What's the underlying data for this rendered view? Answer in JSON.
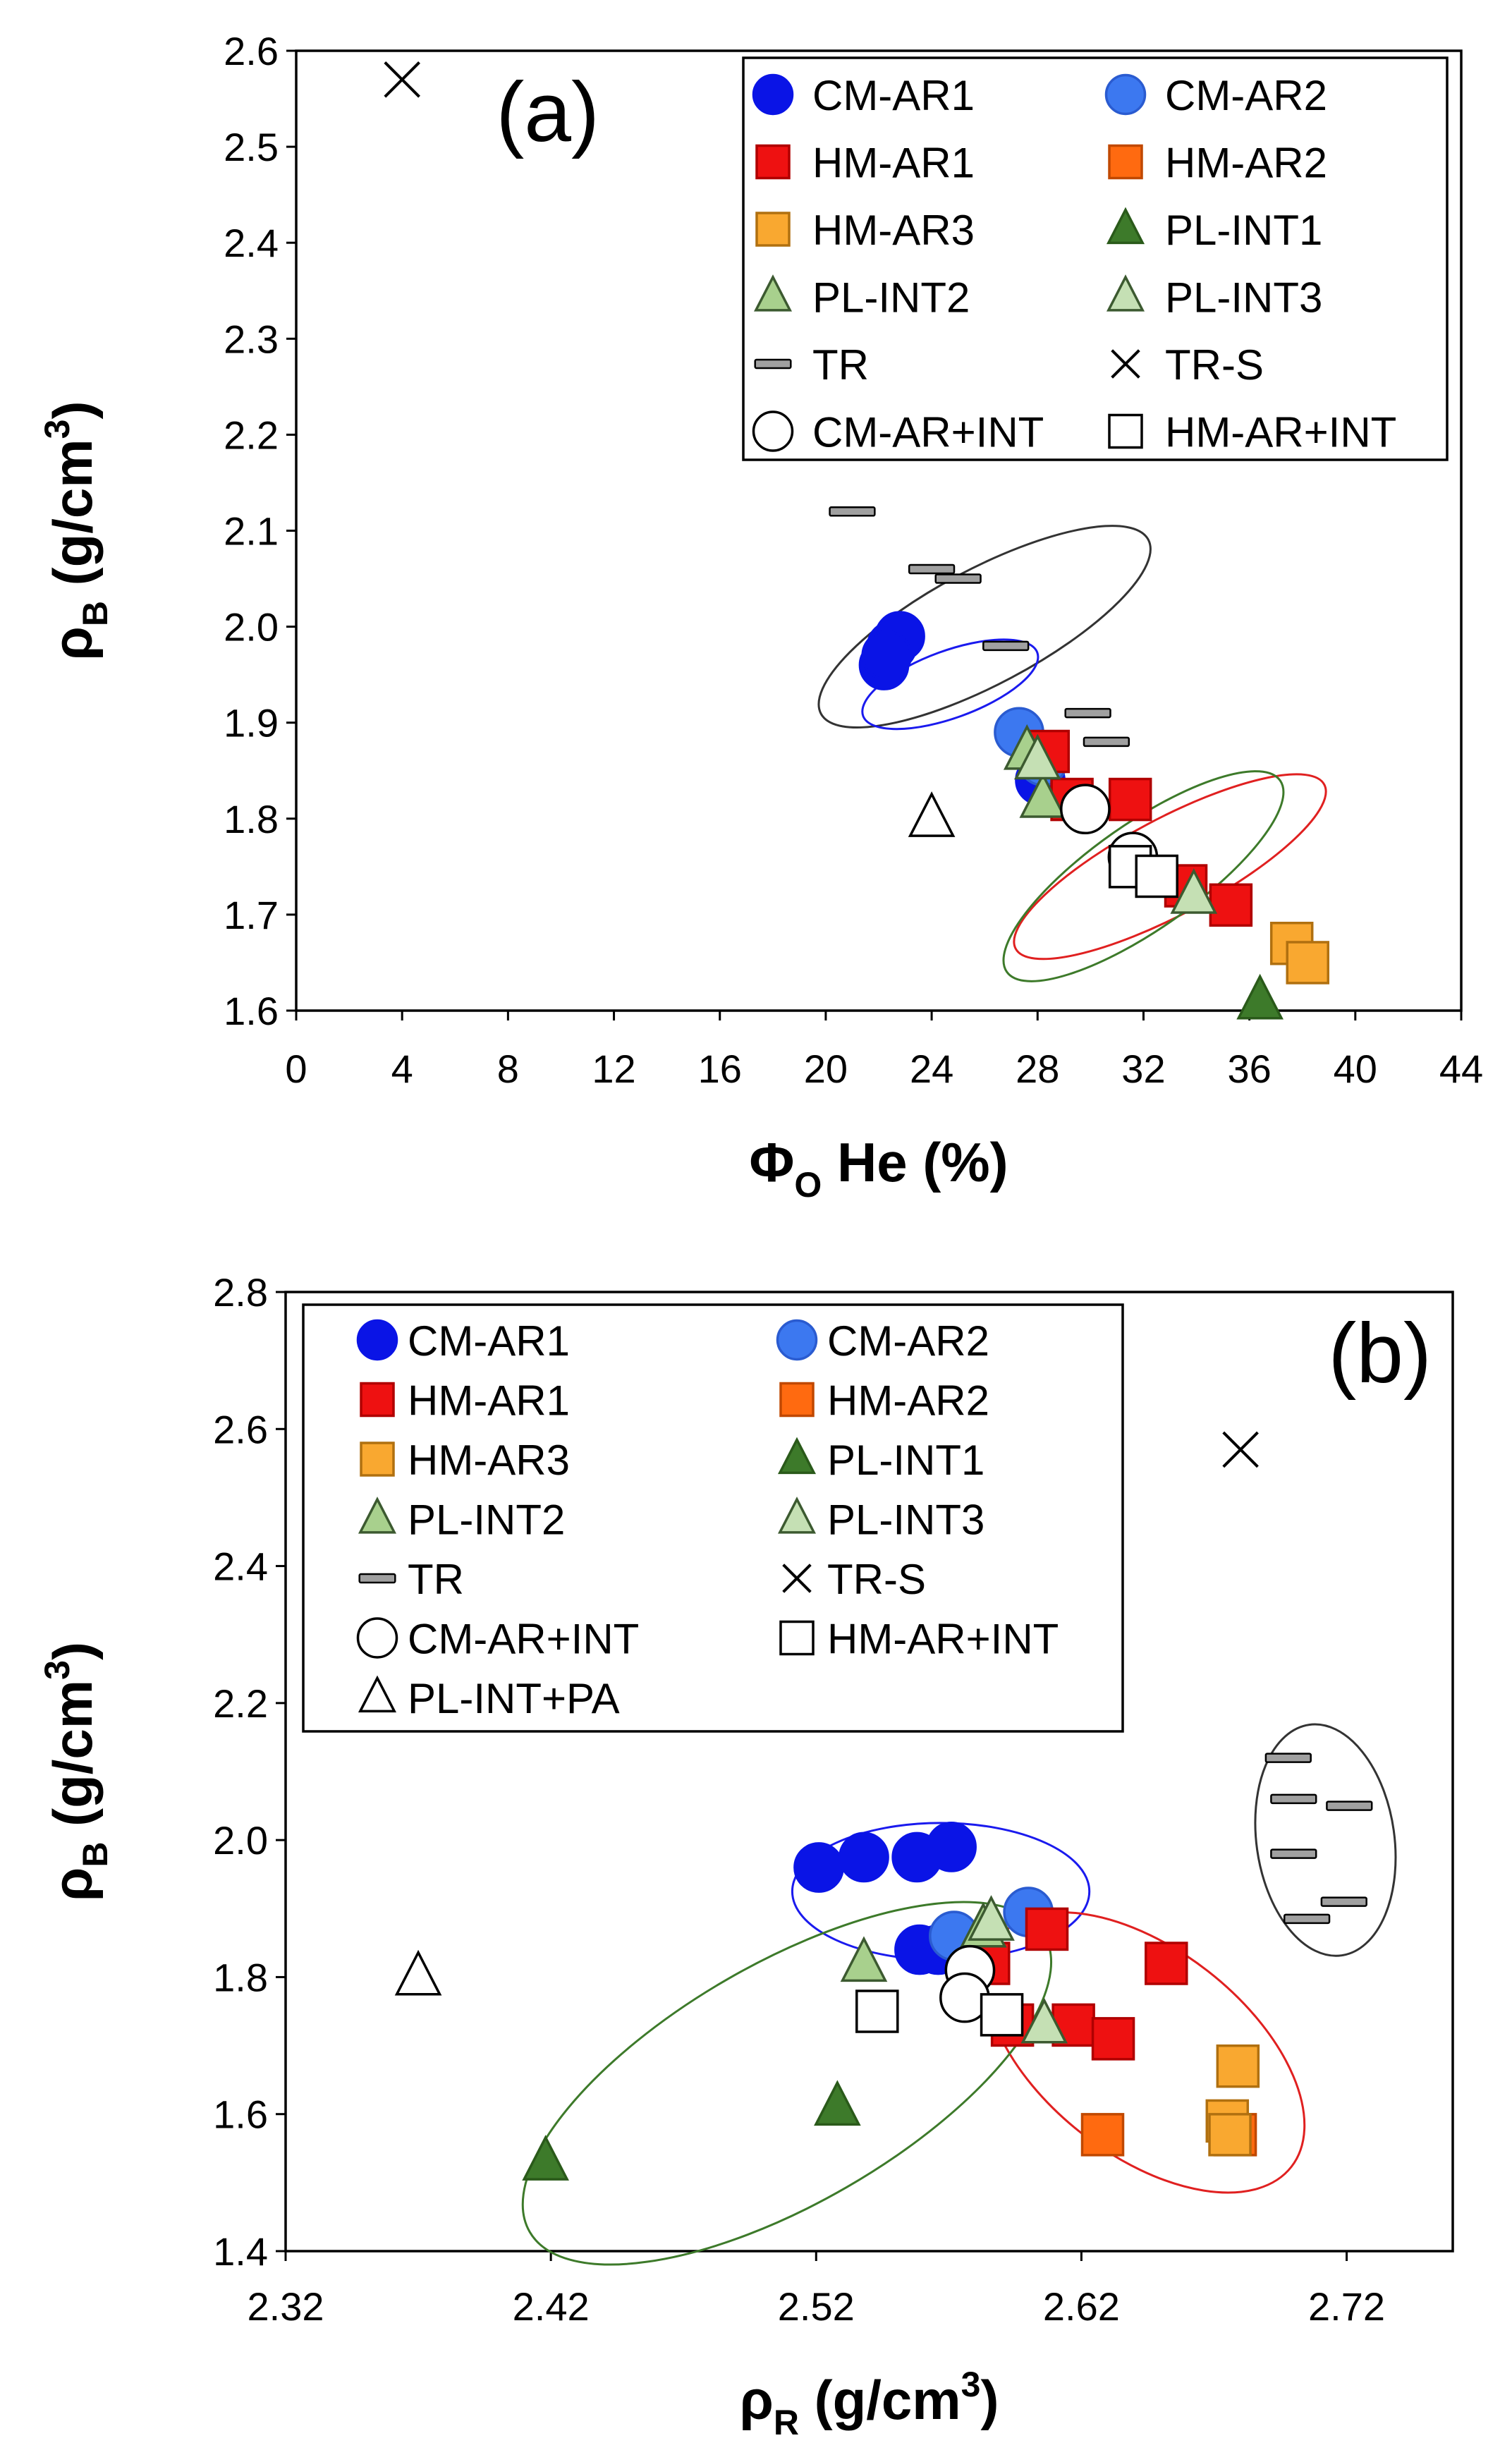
{
  "series_styles": {
    "CM-AR1": {
      "marker": "circle",
      "fill": "#0a14e6",
      "stroke": "#0a14e6"
    },
    "CM-AR2": {
      "marker": "circle",
      "fill": "#3c78f0",
      "stroke": "#2a5bd0"
    },
    "HM-AR1": {
      "marker": "square",
      "fill": "#ee1111",
      "stroke": "#b00000"
    },
    "HM-AR2": {
      "marker": "square",
      "fill": "#ff6a10",
      "stroke": "#c04800"
    },
    "HM-AR3": {
      "marker": "square",
      "fill": "#f9a830",
      "stroke": "#b07010"
    },
    "PL-INT1": {
      "marker": "triangle",
      "fill": "#3d7a2a",
      "stroke": "#2a5a1a"
    },
    "PL-INT2": {
      "marker": "triangle",
      "fill": "#a8d08d",
      "stroke": "#3c5a30"
    },
    "PL-INT3": {
      "marker": "triangle",
      "fill": "#c5e0b4",
      "stroke": "#3c5a30"
    },
    "TR": {
      "marker": "dash",
      "fill": "#a0a0a0",
      "stroke": "#000000"
    },
    "TR-S": {
      "marker": "x",
      "fill": "none",
      "stroke": "#000000"
    },
    "CM-AR+INT": {
      "marker": "circle",
      "fill": "#ffffff",
      "stroke": "#000000"
    },
    "HM-AR+INT": {
      "marker": "square",
      "fill": "#ffffff",
      "stroke": "#000000"
    },
    "PL-INT+PA": {
      "marker": "triangle",
      "fill": "#ffffff",
      "stroke": "#000000"
    }
  },
  "chart_data": [
    {
      "type": "scatter",
      "panel_label": "(a)",
      "xlabel": {
        "main": "Φ",
        "sub": "O",
        "rest": " He (%)"
      },
      "ylabel": {
        "main": "ρ",
        "sub": "B",
        "rest": " (g/cm",
        "sup": "3",
        "end": ")"
      },
      "xlim": [
        0,
        44
      ],
      "ylim": [
        1.6,
        2.6
      ],
      "xticks": [
        "0",
        "4",
        "8",
        "12",
        "16",
        "20",
        "24",
        "28",
        "32",
        "36",
        "40",
        "44"
      ],
      "yticks": [
        "1.6",
        "1.7",
        "1.8",
        "1.9",
        "2.0",
        "2.1",
        "2.2",
        "2.3",
        "2.4",
        "2.5",
        "2.6"
      ],
      "legend_position": "top-right",
      "legend": [
        "CM-AR1",
        "CM-AR2",
        "HM-AR1",
        "HM-AR2",
        "HM-AR3",
        "PL-INT1",
        "PL-INT2",
        "PL-INT3",
        "TR",
        "TR-S",
        "CM-AR+INT",
        "HM-AR+INT"
      ],
      "series": [
        {
          "name": "CM-AR1",
          "points": [
            [
              22.2,
              1.96
            ],
            [
              22.5,
              1.98
            ],
            [
              22.8,
              1.99
            ],
            [
              22.3,
              1.97
            ],
            [
              28.1,
              1.84
            ]
          ]
        },
        {
          "name": "CM-AR2",
          "points": [
            [
              27.3,
              1.89
            ],
            [
              28.2,
              1.86
            ]
          ]
        },
        {
          "name": "HM-AR1",
          "points": [
            [
              28.4,
              1.87
            ],
            [
              29.3,
              1.82
            ],
            [
              31.5,
              1.82
            ],
            [
              33.6,
              1.73
            ],
            [
              35.3,
              1.71
            ]
          ]
        },
        {
          "name": "HM-AR2",
          "points": []
        },
        {
          "name": "HM-AR3",
          "points": [
            [
              37.6,
              1.67
            ],
            [
              38.2,
              1.65
            ]
          ]
        },
        {
          "name": "PL-INT1",
          "points": [
            [
              36.4,
              1.61
            ]
          ]
        },
        {
          "name": "PL-INT2",
          "points": [
            [
              27.6,
              1.87
            ],
            [
              28.2,
              1.82
            ]
          ]
        },
        {
          "name": "PL-INT3",
          "points": [
            [
              33.9,
              1.72
            ],
            [
              28.0,
              1.86
            ]
          ]
        },
        {
          "name": "TR",
          "points": [
            [
              21.0,
              2.12
            ],
            [
              24.0,
              2.06
            ],
            [
              25.0,
              2.05
            ],
            [
              26.8,
              1.98
            ],
            [
              29.9,
              1.91
            ],
            [
              30.6,
              1.88
            ]
          ]
        },
        {
          "name": "TR-S",
          "points": [
            [
              4.0,
              2.57
            ]
          ]
        },
        {
          "name": "CM-AR+INT",
          "points": [
            [
              29.8,
              1.81
            ],
            [
              31.6,
              1.76
            ]
          ]
        },
        {
          "name": "HM-AR+INT",
          "points": [
            [
              31.5,
              1.75
            ],
            [
              32.5,
              1.74
            ]
          ]
        },
        {
          "name": "PL-INT+PA",
          "points": [
            [
              24.0,
              1.8
            ]
          ]
        }
      ],
      "ellipses": [
        {
          "color": "#333333",
          "cx": 26.0,
          "cy": 2.0,
          "rx": 7.0,
          "ry": 0.06,
          "angle_deg": -28
        },
        {
          "color": "#1a1aee",
          "cx": 24.7,
          "cy": 1.94,
          "rx": 3.5,
          "ry": 0.035,
          "angle_deg": -20
        },
        {
          "color": "#e02020",
          "cx": 33.0,
          "cy": 1.75,
          "rx": 6.6,
          "ry": 0.05,
          "angle_deg": -28
        },
        {
          "color": "#3d7a2a",
          "cx": 32.0,
          "cy": 1.74,
          "rx": 6.3,
          "ry": 0.055,
          "angle_deg": -35
        }
      ]
    },
    {
      "type": "scatter",
      "panel_label": "(b)",
      "xlabel": {
        "main": "ρ",
        "sub": "R",
        "rest": " (g/cm",
        "sup": "3",
        "end": ")"
      },
      "ylabel": {
        "main": "ρ",
        "sub": "B",
        "rest": " (g/cm",
        "sup": "3",
        "end": ")"
      },
      "xlim": [
        2.32,
        2.76
      ],
      "ylim": [
        1.4,
        2.8
      ],
      "xticks": [
        "2.32",
        "2.42",
        "2.52",
        "2.62",
        "2.72"
      ],
      "xtick_values": [
        2.32,
        2.42,
        2.52,
        2.62,
        2.72
      ],
      "yticks": [
        "1.4",
        "1.6",
        "1.8",
        "2.0",
        "2.2",
        "2.4",
        "2.6",
        "2.8"
      ],
      "legend_position": "top-left",
      "legend": [
        "CM-AR1",
        "CM-AR2",
        "HM-AR1",
        "HM-AR2",
        "HM-AR3",
        "PL-INT1",
        "PL-INT2",
        "PL-INT3",
        "TR",
        "TR-S",
        "CM-AR+INT",
        "HM-AR+INT",
        "PL-INT+PA"
      ],
      "series": [
        {
          "name": "CM-AR1",
          "points": [
            [
              2.521,
              1.96
            ],
            [
              2.538,
              1.975
            ],
            [
              2.558,
              1.975
            ],
            [
              2.571,
              1.99
            ],
            [
              2.559,
              1.84
            ],
            [
              2.566,
              1.84
            ]
          ]
        },
        {
          "name": "CM-AR2",
          "points": [
            [
              2.572,
              1.86
            ],
            [
              2.6,
              1.895
            ]
          ]
        },
        {
          "name": "HM-AR1",
          "points": [
            [
              2.607,
              1.87
            ],
            [
              2.585,
              1.82
            ],
            [
              2.652,
              1.82
            ],
            [
              2.594,
              1.73
            ],
            [
              2.617,
              1.73
            ],
            [
              2.632,
              1.71
            ]
          ]
        },
        {
          "name": "HM-AR2",
          "points": [
            [
              2.628,
              1.57
            ],
            [
              2.678,
              1.57
            ]
          ]
        },
        {
          "name": "HM-AR3",
          "points": [
            [
              2.675,
              1.59
            ],
            [
              2.679,
              1.67
            ],
            [
              2.676,
              1.57
            ]
          ]
        },
        {
          "name": "PL-INT1",
          "points": [
            [
              2.528,
              1.61
            ],
            [
              2.418,
              1.53
            ]
          ]
        },
        {
          "name": "PL-INT2",
          "points": [
            [
              2.538,
              1.82
            ],
            [
              2.583,
              1.87
            ]
          ]
        },
        {
          "name": "PL-INT3",
          "points": [
            [
              2.586,
              1.88
            ],
            [
              2.606,
              1.73
            ]
          ]
        },
        {
          "name": "TR",
          "points": [
            [
              2.698,
              2.12
            ],
            [
              2.7,
              2.06
            ],
            [
              2.721,
              2.05
            ],
            [
              2.7,
              1.98
            ],
            [
              2.705,
              1.885
            ],
            [
              2.719,
              1.91
            ]
          ]
        },
        {
          "name": "TR-S",
          "points": [
            [
              2.68,
              2.57
            ]
          ]
        },
        {
          "name": "CM-AR+INT",
          "points": [
            [
              2.578,
              1.81
            ],
            [
              2.576,
              1.77
            ]
          ]
        },
        {
          "name": "HM-AR+INT",
          "points": [
            [
              2.543,
              1.75
            ],
            [
              2.59,
              1.745
            ]
          ]
        },
        {
          "name": "PL-INT+PA",
          "points": [
            [
              2.37,
              1.8
            ]
          ]
        }
      ],
      "ellipses": [
        {
          "color": "#333333",
          "cx": 2.712,
          "cy": 2.0,
          "rx": 0.026,
          "ry": 0.17,
          "angle_deg": -8
        },
        {
          "color": "#1a1aee",
          "cx": 2.567,
          "cy": 1.925,
          "rx": 0.056,
          "ry": 0.1,
          "angle_deg": 0
        },
        {
          "color": "#e02020",
          "cx": 2.644,
          "cy": 1.69,
          "rx": 0.07,
          "ry": 0.15,
          "angle_deg": 38
        },
        {
          "color": "#3d7a2a",
          "cx": 2.509,
          "cy": 1.645,
          "rx": 0.112,
          "ry": 0.175,
          "angle_deg": -30
        }
      ]
    }
  ]
}
